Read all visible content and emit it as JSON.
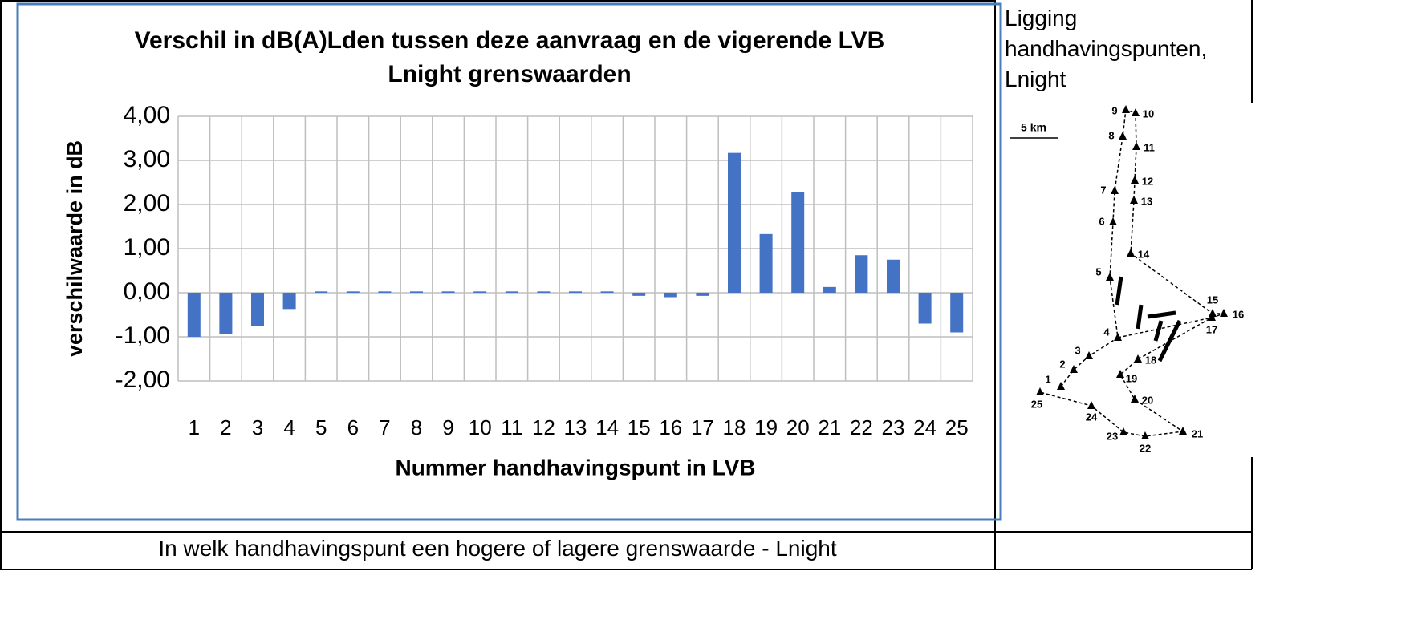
{
  "chart_data": {
    "type": "bar",
    "title": "Verschil in dB(A)Lden tussen deze aanvraag en de vigerende LVB Lnight grenswaarden",
    "x_label": "Nummer handhavingspunt in LVB",
    "y_label": "verschilwaarde in dB",
    "categories": [
      "1",
      "2",
      "3",
      "4",
      "5",
      "6",
      "7",
      "8",
      "9",
      "10",
      "11",
      "12",
      "13",
      "14",
      "15",
      "16",
      "17",
      "18",
      "19",
      "20",
      "21",
      "22",
      "23",
      "24",
      "25"
    ],
    "values": [
      -1.0,
      -0.93,
      -0.75,
      -0.37,
      0.03,
      0.03,
      0.03,
      0.03,
      0.03,
      0.03,
      0.03,
      0.03,
      0.03,
      0.03,
      -0.07,
      -0.1,
      -0.07,
      3.17,
      1.33,
      2.28,
      0.13,
      0.85,
      0.75,
      -0.7,
      -0.9
    ],
    "color": "#4472c4",
    "ylim": [
      -2,
      4
    ],
    "yticks": [
      {
        "value": -2,
        "label": "-2,00"
      },
      {
        "value": -1,
        "label": "-1,00"
      },
      {
        "value": 0,
        "label": "0,00"
      },
      {
        "value": 1,
        "label": "1,00"
      },
      {
        "value": 2,
        "label": "2,00"
      },
      {
        "value": 3,
        "label": "3,00"
      },
      {
        "value": 4,
        "label": "4,00"
      }
    ],
    "grid": true
  },
  "side_panel": {
    "title": "Ligging handhavingspunten, Lnight",
    "scale_label": "5 km",
    "points": [
      "1",
      "2",
      "3",
      "4",
      "5",
      "6",
      "7",
      "8",
      "9",
      "10",
      "11",
      "12",
      "13",
      "14",
      "15",
      "16",
      "17",
      "18",
      "19",
      "20",
      "21",
      "22",
      "23",
      "24",
      "25"
    ]
  },
  "caption": "In welk handhavingspunt een hogere of lagere grenswaarde - Lnight"
}
